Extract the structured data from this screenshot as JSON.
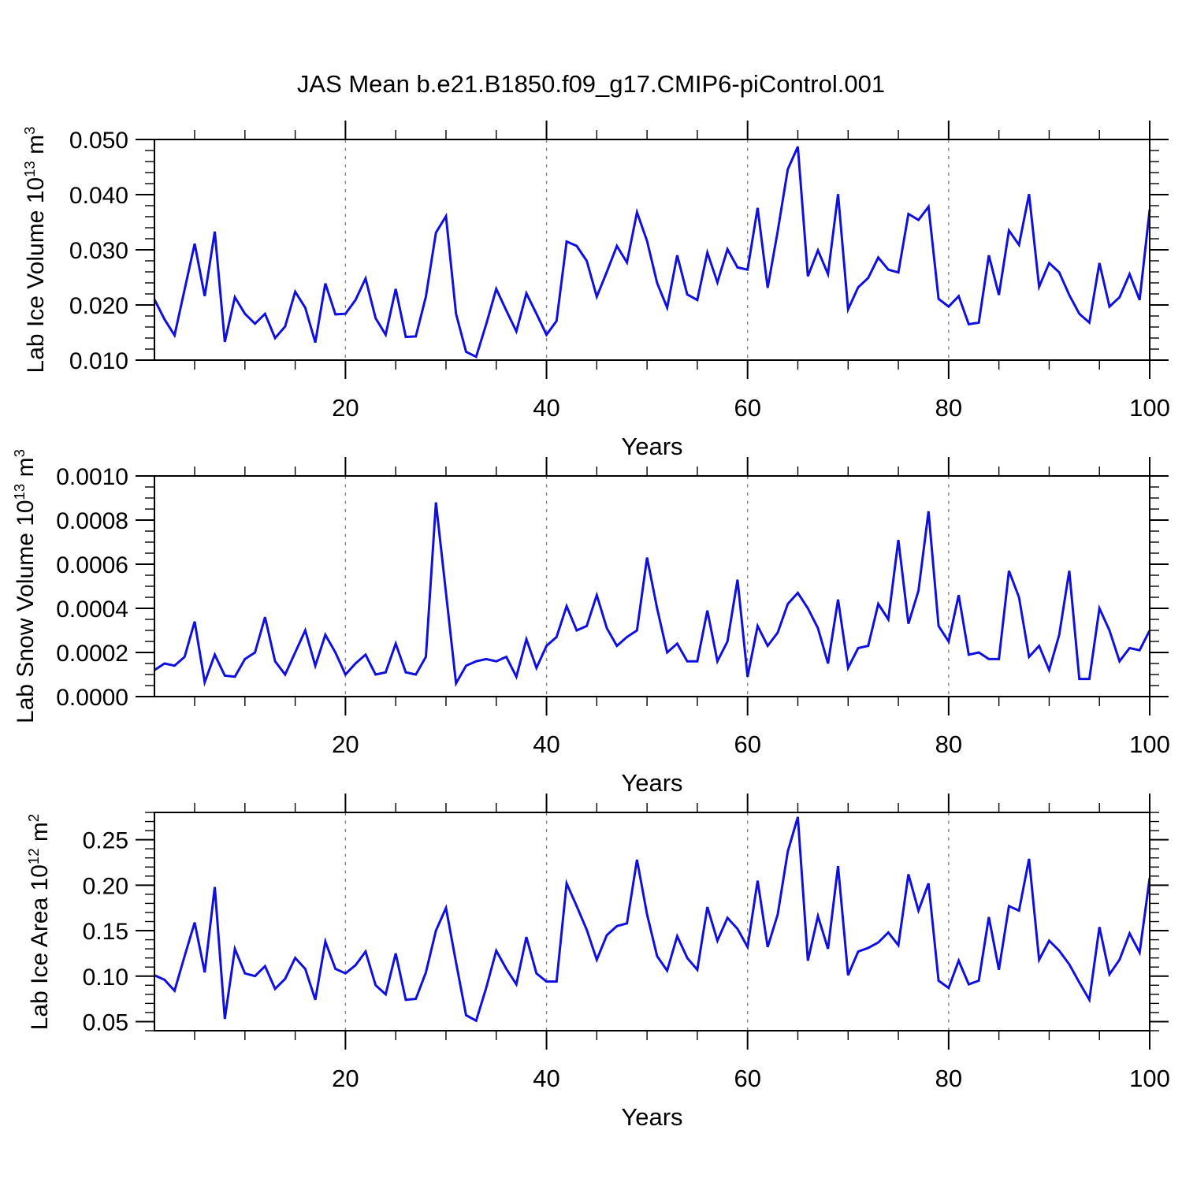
{
  "title": "JAS Mean b.e21.B1850.f09_g17.CMIP6-piControl.001",
  "colors": {
    "line": "#0F0FE0",
    "grid": "#848484",
    "frame": "#000000",
    "text": "#000000"
  },
  "chart_data": [
    {
      "type": "line",
      "name": "lab-ice-volume",
      "ylabel": {
        "pre": "Lab Ice Volume 10",
        "sup1": "13",
        "mid": " m",
        "sup2": "3"
      },
      "xlabel": "Years",
      "xlim": [
        1,
        100
      ],
      "ylim": [
        0.01,
        0.05
      ],
      "ytick_values": [
        0.01,
        0.02,
        0.03,
        0.04,
        0.05
      ],
      "ytick_labels": [
        "0.010",
        "0.020",
        "0.030",
        "0.040",
        "0.050"
      ],
      "yminor_step": 0.002,
      "xticks": [
        20,
        40,
        60,
        80,
        100
      ],
      "xminor_step": 5,
      "grid_x": [
        20,
        40,
        60,
        80
      ],
      "x_years": "1..100",
      "values": [
        0.021,
        0.0174,
        0.0145,
        0.0228,
        0.0311,
        0.0216,
        0.0333,
        0.0133,
        0.0214,
        0.0184,
        0.0166,
        0.0184,
        0.014,
        0.0161,
        0.0224,
        0.0195,
        0.0132,
        0.0239,
        0.0183,
        0.0184,
        0.0209,
        0.0248,
        0.0176,
        0.0146,
        0.0229,
        0.0142,
        0.0143,
        0.0215,
        0.0331,
        0.0361,
        0.0184,
        0.0115,
        0.0106,
        0.0165,
        0.0229,
        0.019,
        0.0152,
        0.0221,
        0.0184,
        0.0146,
        0.0171,
        0.0315,
        0.0307,
        0.028,
        0.0215,
        0.026,
        0.0307,
        0.0277,
        0.0368,
        0.0316,
        0.024,
        0.0195,
        0.029,
        0.0219,
        0.0209,
        0.0295,
        0.0241,
        0.0301,
        0.0268,
        0.0264,
        0.0376,
        0.0231,
        0.0334,
        0.0446,
        0.0487,
        0.0252,
        0.0299,
        0.0256,
        0.0401,
        0.0192,
        0.0232,
        0.0249,
        0.0286,
        0.0264,
        0.0259,
        0.0365,
        0.0354,
        0.0378,
        0.0211,
        0.0197,
        0.0216,
        0.0165,
        0.0168,
        0.029,
        0.0218,
        0.0335,
        0.0309,
        0.0401,
        0.0233,
        0.0276,
        0.0259,
        0.0218,
        0.0184,
        0.0168,
        0.0276,
        0.0197,
        0.0214,
        0.0256,
        0.0209,
        0.0373
      ]
    },
    {
      "type": "line",
      "name": "lab-snow-volume",
      "ylabel": {
        "pre": "Lab Snow Volume 10",
        "sup1": "13",
        "mid": " m",
        "sup2": "3"
      },
      "xlabel": "Years",
      "xlim": [
        1,
        100
      ],
      "ylim": [
        0.0,
        0.001
      ],
      "ytick_values": [
        0.0,
        0.0002,
        0.0004,
        0.0006,
        0.0008,
        0.001
      ],
      "ytick_labels": [
        "0.0000",
        "0.0002",
        "0.0004",
        "0.0006",
        "0.0008",
        "0.0010"
      ],
      "yminor_step": 5e-05,
      "xticks": [
        20,
        40,
        60,
        80,
        100
      ],
      "xminor_step": 5,
      "grid_x": [
        20,
        40,
        60,
        80
      ],
      "x_years": "1..100",
      "values": [
        0.00012,
        0.00015,
        0.00014,
        0.00018,
        0.00034,
        6.5e-05,
        0.00019,
        9.5e-05,
        9e-05,
        0.00017,
        0.0002,
        0.00036,
        0.00016,
        0.0001,
        0.0002,
        0.0003,
        0.00014,
        0.00028,
        0.0002,
        0.0001,
        0.00015,
        0.00019,
        0.0001,
        0.00011,
        0.00024,
        0.00011,
        0.0001,
        0.00018,
        0.00088,
        0.00047,
        6e-05,
        0.00014,
        0.00016,
        0.00017,
        0.00016,
        0.00018,
        9e-05,
        0.00026,
        0.00013,
        0.00023,
        0.00027,
        0.00041,
        0.0003,
        0.00032,
        0.00046,
        0.00031,
        0.00023,
        0.00027,
        0.0003,
        0.00063,
        0.0004,
        0.0002,
        0.00024,
        0.00016,
        0.00016,
        0.00039,
        0.00016,
        0.00025,
        0.00053,
        9e-05,
        0.00032,
        0.00023,
        0.00029,
        0.00042,
        0.00047,
        0.0004,
        0.00031,
        0.00015,
        0.00044,
        0.00013,
        0.00022,
        0.00023,
        0.00042,
        0.00035,
        0.00071,
        0.00033,
        0.00048,
        0.00084,
        0.00032,
        0.00025,
        0.00046,
        0.00019,
        0.0002,
        0.00017,
        0.00017,
        0.00057,
        0.00045,
        0.00018,
        0.00023,
        0.00012,
        0.00028,
        0.00057,
        8e-05,
        8e-05,
        0.0004,
        0.0003,
        0.00016,
        0.00022,
        0.00021,
        0.0003
      ]
    },
    {
      "type": "line",
      "name": "lab-ice-area",
      "ylabel": {
        "pre": "Lab Ice Area 10",
        "sup1": "12",
        "mid": " m",
        "sup2": "2"
      },
      "xlabel": "Years",
      "xlim": [
        1,
        100
      ],
      "ylim": [
        0.04,
        0.28
      ],
      "ytick_values": [
        0.05,
        0.1,
        0.15,
        0.2,
        0.25
      ],
      "ytick_labels": [
        "0.05",
        "0.10",
        "0.15",
        "0.20",
        "0.25"
      ],
      "yminor_step": 0.01,
      "xticks": [
        20,
        40,
        60,
        80,
        100
      ],
      "xminor_step": 5,
      "grid_x": [
        20,
        40,
        60,
        80
      ],
      "x_years": "1..100",
      "values": [
        0.101,
        0.096,
        0.084,
        0.122,
        0.159,
        0.104,
        0.198,
        0.053,
        0.13,
        0.103,
        0.1,
        0.111,
        0.086,
        0.097,
        0.12,
        0.108,
        0.074,
        0.138,
        0.108,
        0.103,
        0.112,
        0.127,
        0.09,
        0.08,
        0.125,
        0.074,
        0.075,
        0.104,
        0.15,
        0.175,
        0.115,
        0.057,
        0.051,
        0.087,
        0.128,
        0.108,
        0.091,
        0.143,
        0.103,
        0.094,
        0.094,
        0.202,
        0.177,
        0.151,
        0.118,
        0.145,
        0.155,
        0.158,
        0.228,
        0.168,
        0.122,
        0.106,
        0.144,
        0.12,
        0.107,
        0.176,
        0.139,
        0.164,
        0.152,
        0.132,
        0.205,
        0.132,
        0.168,
        0.237,
        0.275,
        0.117,
        0.166,
        0.13,
        0.221,
        0.101,
        0.127,
        0.131,
        0.137,
        0.148,
        0.134,
        0.212,
        0.172,
        0.202,
        0.095,
        0.087,
        0.117,
        0.091,
        0.095,
        0.165,
        0.107,
        0.177,
        0.172,
        0.229,
        0.118,
        0.139,
        0.128,
        0.113,
        0.093,
        0.074,
        0.154,
        0.102,
        0.118,
        0.147,
        0.126,
        0.208
      ]
    }
  ]
}
